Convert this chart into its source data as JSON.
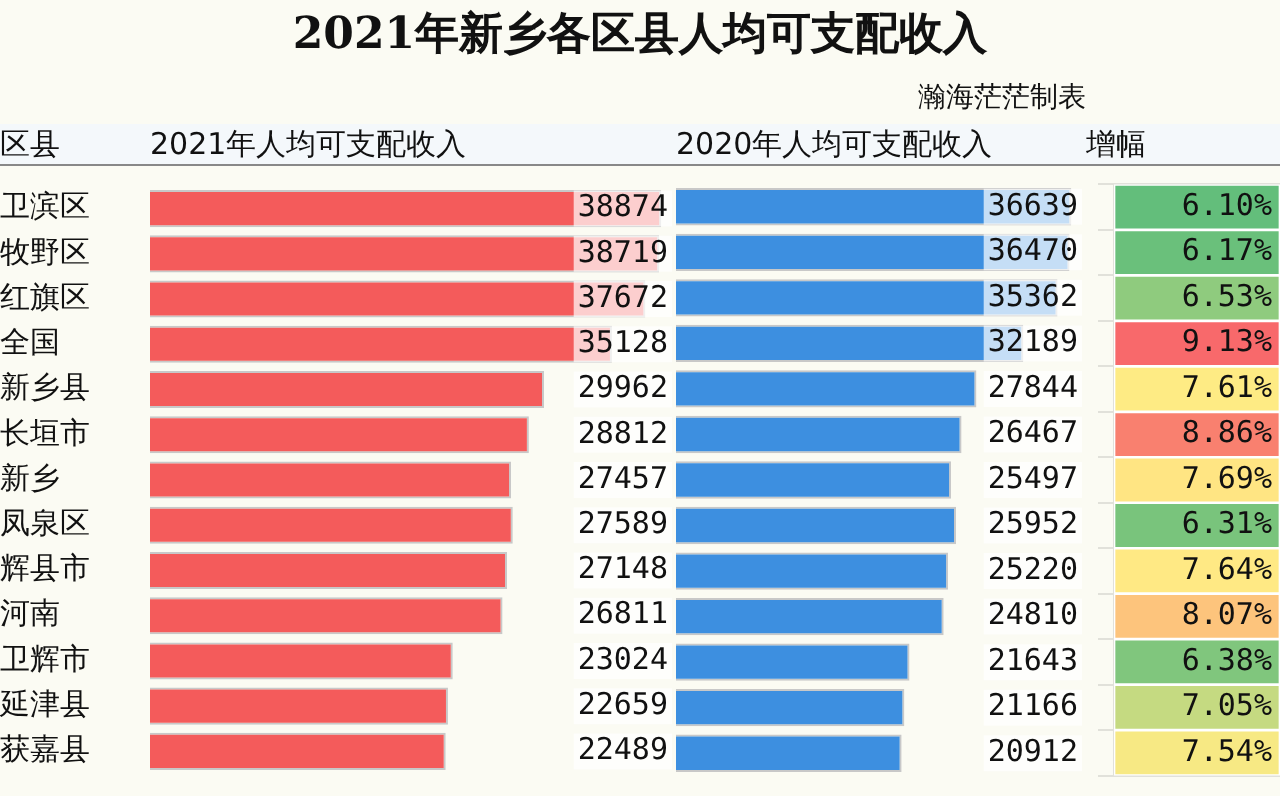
{
  "chart_data": [
    {
      "type": "bar",
      "orientation": "horizontal",
      "title": "2021年新乡各区县人均可支配收入",
      "ylabel": "区县",
      "xlabel": "2021年人均可支配收入",
      "categories": [
        "卫滨区",
        "牧野区",
        "红旗区",
        "全国",
        "新乡县",
        "长垣市",
        "新乡",
        "凤泉区",
        "辉县市",
        "河南",
        "卫辉市",
        "延津县",
        "获嘉县"
      ],
      "values": [
        38874,
        38719,
        37672,
        35128,
        29962,
        28812,
        27457,
        27589,
        27148,
        26811,
        23024,
        22659,
        22489
      ],
      "color": "#f45b5b",
      "xlim": [
        0,
        40000
      ],
      "data_labels": true,
      "tick_labels": "y"
    },
    {
      "type": "bar",
      "orientation": "horizontal",
      "xlabel": "2020年人均可支配收入",
      "annotations": [
        "瀚海茫茫制表"
      ],
      "categories": [
        null,
        null,
        null,
        null,
        null,
        null,
        null,
        null,
        null,
        null,
        null,
        null,
        null
      ],
      "values": [
        36639,
        36470,
        35362,
        32189,
        27844,
        26467,
        25497,
        25952,
        25220,
        24810,
        21643,
        21166,
        20912
      ],
      "color": "#3d8fe0",
      "xlim": [
        0,
        38000
      ],
      "data_labels": true,
      "tick_labels": false
    },
    {
      "type": "other",
      "xlabel": "增幅",
      "values": [
        6.1,
        6.17,
        6.53,
        9.13,
        7.61,
        8.86,
        7.69,
        6.31,
        7.64,
        8.07,
        6.38,
        7.05,
        7.54
      ],
      "value_labels": [
        "6.10%",
        "6.17%",
        "6.53%",
        "9.13%",
        "7.61%",
        "8.86%",
        "7.69%",
        "6.31%",
        "7.64%",
        "8.07%",
        "6.38%",
        "7.05%",
        "7.54%"
      ]
    }
  ]
}
